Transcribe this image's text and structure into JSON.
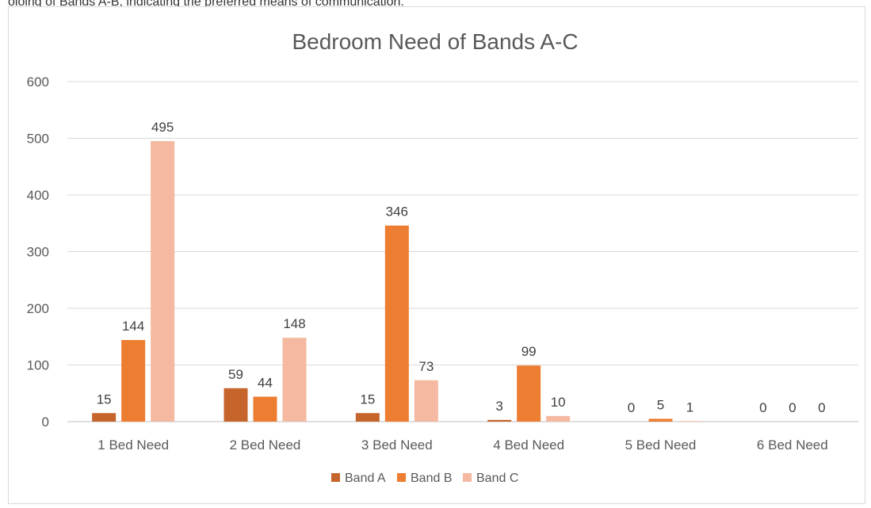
{
  "cut_text": "oloing of Bands A-B, indicating the preferred means of communication.",
  "chart_data": {
    "type": "bar",
    "title": "Bedroom Need of Bands A-C",
    "categories": [
      "1 Bed Need",
      "2 Bed Need",
      "3 Bed Need",
      "4 Bed Need",
      "5 Bed Need",
      "6 Bed Need"
    ],
    "series": [
      {
        "name": "Band A",
        "color": "#c5652b",
        "values": [
          15,
          59,
          15,
          3,
          0,
          0
        ]
      },
      {
        "name": "Band B",
        "color": "#ed7d31",
        "values": [
          144,
          44,
          346,
          99,
          5,
          0
        ]
      },
      {
        "name": "Band C",
        "color": "#f4b9a0",
        "values": [
          495,
          148,
          73,
          10,
          1,
          0
        ]
      }
    ],
    "ylim": [
      0,
      600
    ],
    "yticks": [
      0,
      100,
      200,
      300,
      400,
      500,
      600
    ],
    "grid": true,
    "legend": "bottom"
  }
}
